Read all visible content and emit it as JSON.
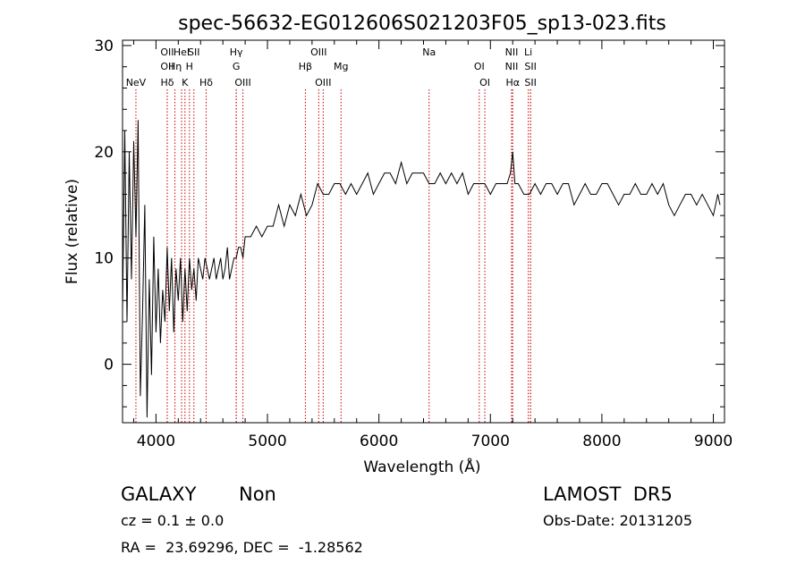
{
  "chart_data": {
    "type": "line",
    "title": "spec-56632-EG012606S021203F05_sp13-023.fits",
    "xlabel": "Wavelength (Å)",
    "ylabel": "Flux (relative)",
    "xlim": [
      3700,
      9100
    ],
    "ylim": [
      -5.5,
      30.5
    ],
    "x_ticks": [
      4000,
      5000,
      6000,
      7000,
      8000,
      9000
    ],
    "y_ticks": [
      0,
      10,
      20,
      30
    ],
    "grid": false,
    "line_color": "#000000",
    "marker_color": "#cc0000",
    "series": [
      {
        "x": [
          3700,
          3720,
          3740,
          3760,
          3780,
          3800,
          3820,
          3840,
          3860,
          3880,
          3900,
          3920,
          3940,
          3960,
          3980,
          4000,
          4020,
          4040,
          4060,
          4080,
          4100,
          4120,
          4140,
          4160,
          4180,
          4200,
          4220,
          4240,
          4260,
          4280,
          4300,
          4320,
          4340,
          4360,
          4380,
          4400,
          4420,
          4440,
          4460,
          4480,
          4500,
          4520,
          4540,
          4560,
          4580,
          4600,
          4620,
          4640,
          4660,
          4680,
          4700,
          4720,
          4740,
          4760,
          4780,
          4800,
          4850,
          4900,
          4950,
          5000,
          5050,
          5100,
          5150,
          5200,
          5250,
          5300,
          5350,
          5400,
          5450,
          5500,
          5550,
          5600,
          5650,
          5700,
          5750,
          5800,
          5850,
          5900,
          5950,
          6000,
          6050,
          6100,
          6150,
          6200,
          6250,
          6300,
          6350,
          6400,
          6450,
          6500,
          6550,
          6600,
          6650,
          6700,
          6750,
          6800,
          6850,
          6900,
          6950,
          7000,
          7050,
          7100,
          7150,
          7180,
          7200,
          7220,
          7250,
          7300,
          7350,
          7400,
          7450,
          7500,
          7550,
          7600,
          7650,
          7700,
          7750,
          7800,
          7850,
          7900,
          7950,
          8000,
          8050,
          8100,
          8150,
          8200,
          8250,
          8300,
          8350,
          8400,
          8450,
          8500,
          8550,
          8600,
          8650,
          8700,
          8750,
          8800,
          8850,
          8900,
          8950,
          9000,
          9020,
          9040,
          9060
        ],
        "y": [
          5,
          22,
          4,
          20,
          8,
          21,
          12,
          23,
          -3,
          5,
          15,
          -5,
          8,
          -1,
          12,
          3,
          9,
          2,
          7,
          4,
          11,
          5,
          10,
          3,
          9,
          6,
          10,
          4,
          9,
          5,
          10,
          7,
          9,
          6,
          10,
          9,
          8,
          10,
          9,
          8,
          9,
          10,
          8,
          9,
          10,
          8,
          9,
          11,
          8,
          9,
          10,
          10,
          11,
          11,
          10,
          12,
          12,
          13,
          12,
          13,
          13,
          15,
          13,
          15,
          14,
          16,
          14,
          15,
          17,
          16,
          16,
          17,
          17,
          16,
          17,
          16,
          17,
          18,
          16,
          17,
          18,
          18,
          17,
          19,
          17,
          18,
          18,
          18,
          17,
          17,
          18,
          17,
          18,
          17,
          18,
          16,
          17,
          17,
          17,
          16,
          17,
          17,
          17,
          18,
          20,
          17,
          17,
          16,
          16,
          17,
          16,
          17,
          17,
          16,
          17,
          17,
          15,
          16,
          17,
          16,
          16,
          17,
          17,
          16,
          15,
          16,
          16,
          17,
          16,
          16,
          17,
          16,
          17,
          15,
          14,
          15,
          16,
          16,
          15,
          16,
          15,
          14,
          15,
          16,
          15
        ]
      }
    ],
    "line_markers": [
      {
        "x": 3820,
        "label": "NeV",
        "row": 2
      },
      {
        "x": 4101,
        "label": "OII",
        "row": 0
      },
      {
        "x": 4101,
        "label": "OII",
        "row": 1
      },
      {
        "x": 4101,
        "label": "Hδ",
        "row": 2
      },
      {
        "x": 4170,
        "label": "Hη",
        "row": 1
      },
      {
        "x": 4230,
        "label": "HeI",
        "row": 0
      },
      {
        "x": 4300,
        "label": "H",
        "row": 1
      },
      {
        "x": 4260,
        "label": "K",
        "row": 2
      },
      {
        "x": 4340,
        "label": "SII",
        "row": 0
      },
      {
        "x": 4450,
        "label": "Hδ",
        "row": 2
      },
      {
        "x": 4720,
        "label": "Hγ",
        "row": 0
      },
      {
        "x": 4720,
        "label": "G",
        "row": 1
      },
      {
        "x": 4780,
        "label": "OIII",
        "row": 2
      },
      {
        "x": 5340,
        "label": "Hβ",
        "row": 1
      },
      {
        "x": 5460,
        "label": "OIII",
        "row": 0
      },
      {
        "x": 5500,
        "label": "OIII",
        "row": 2
      },
      {
        "x": 5660,
        "label": "Mg",
        "row": 1
      },
      {
        "x": 6450,
        "label": "Na",
        "row": 0
      },
      {
        "x": 6900,
        "label": "OI",
        "row": 1
      },
      {
        "x": 6950,
        "label": "OI",
        "row": 2
      },
      {
        "x": 7190,
        "label": "NII",
        "row": 0
      },
      {
        "x": 7190,
        "label": "NII",
        "row": 1
      },
      {
        "x": 7200,
        "label": "Hα",
        "row": 2
      },
      {
        "x": 7340,
        "label": "Li",
        "row": 0
      },
      {
        "x": 7360,
        "label": "SII",
        "row": 1
      },
      {
        "x": 7360,
        "label": "SII",
        "row": 2
      }
    ]
  },
  "info": {
    "class": "GALAXY",
    "subclass": "Non",
    "survey": "LAMOST  DR5",
    "cz": "cz = 0.1 ± 0.0",
    "obs_date": "Obs-Date: 20131205",
    "coords": "RA =  23.69296, DEC =  -1.28562"
  }
}
